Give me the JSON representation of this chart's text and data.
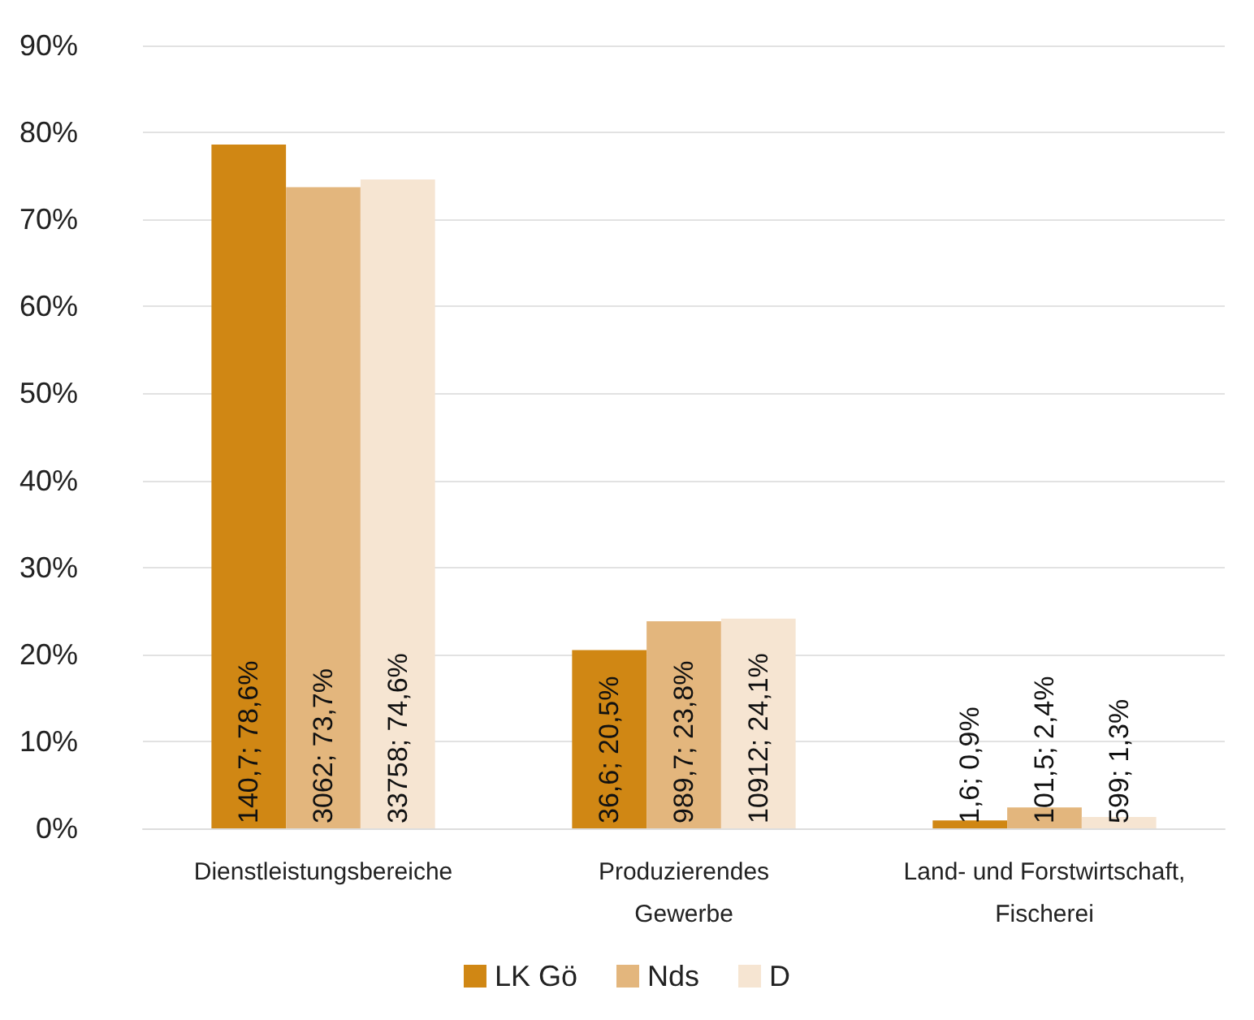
{
  "chart_data": {
    "type": "bar",
    "categories": [
      "Dienstleistungsbereiche",
      "Produzierendes\nGewerbe",
      "Land- und Forstwirtschaft,\nFischerei"
    ],
    "series": [
      {
        "name": "LK Gö",
        "color": "#d08714",
        "values": [
          78.6,
          20.5,
          0.9
        ],
        "value_labels": [
          "140,7; 78,6%",
          "36,6; 20,5%",
          "1,6; 0,9%"
        ]
      },
      {
        "name": "Nds",
        "color": "#e3b67d",
        "values": [
          73.7,
          23.8,
          2.4
        ],
        "value_labels": [
          "3062; 73,7%",
          "989,7; 23,8%",
          "101,5; 2,4%"
        ]
      },
      {
        "name": "D",
        "color": "#f6e5d2",
        "values": [
          74.6,
          24.1,
          1.3
        ],
        "value_labels": [
          "33758; 74,6%",
          "10912; 24,1%",
          "599; 1,3%"
        ]
      }
    ],
    "ylim": [
      0,
      90
    ],
    "yticks": [
      {
        "value": 0,
        "label": "0%"
      },
      {
        "value": 10,
        "label": "10%"
      },
      {
        "value": 20,
        "label": "20%"
      },
      {
        "value": 30,
        "label": "30%"
      },
      {
        "value": 40,
        "label": "40%"
      },
      {
        "value": 50,
        "label": "50%"
      },
      {
        "value": 60,
        "label": "60%"
      },
      {
        "value": 70,
        "label": "70%"
      },
      {
        "value": 80,
        "label": "80%"
      },
      {
        "value": 90,
        "label": "90%"
      }
    ],
    "grid": "y",
    "legend": "bottom"
  }
}
